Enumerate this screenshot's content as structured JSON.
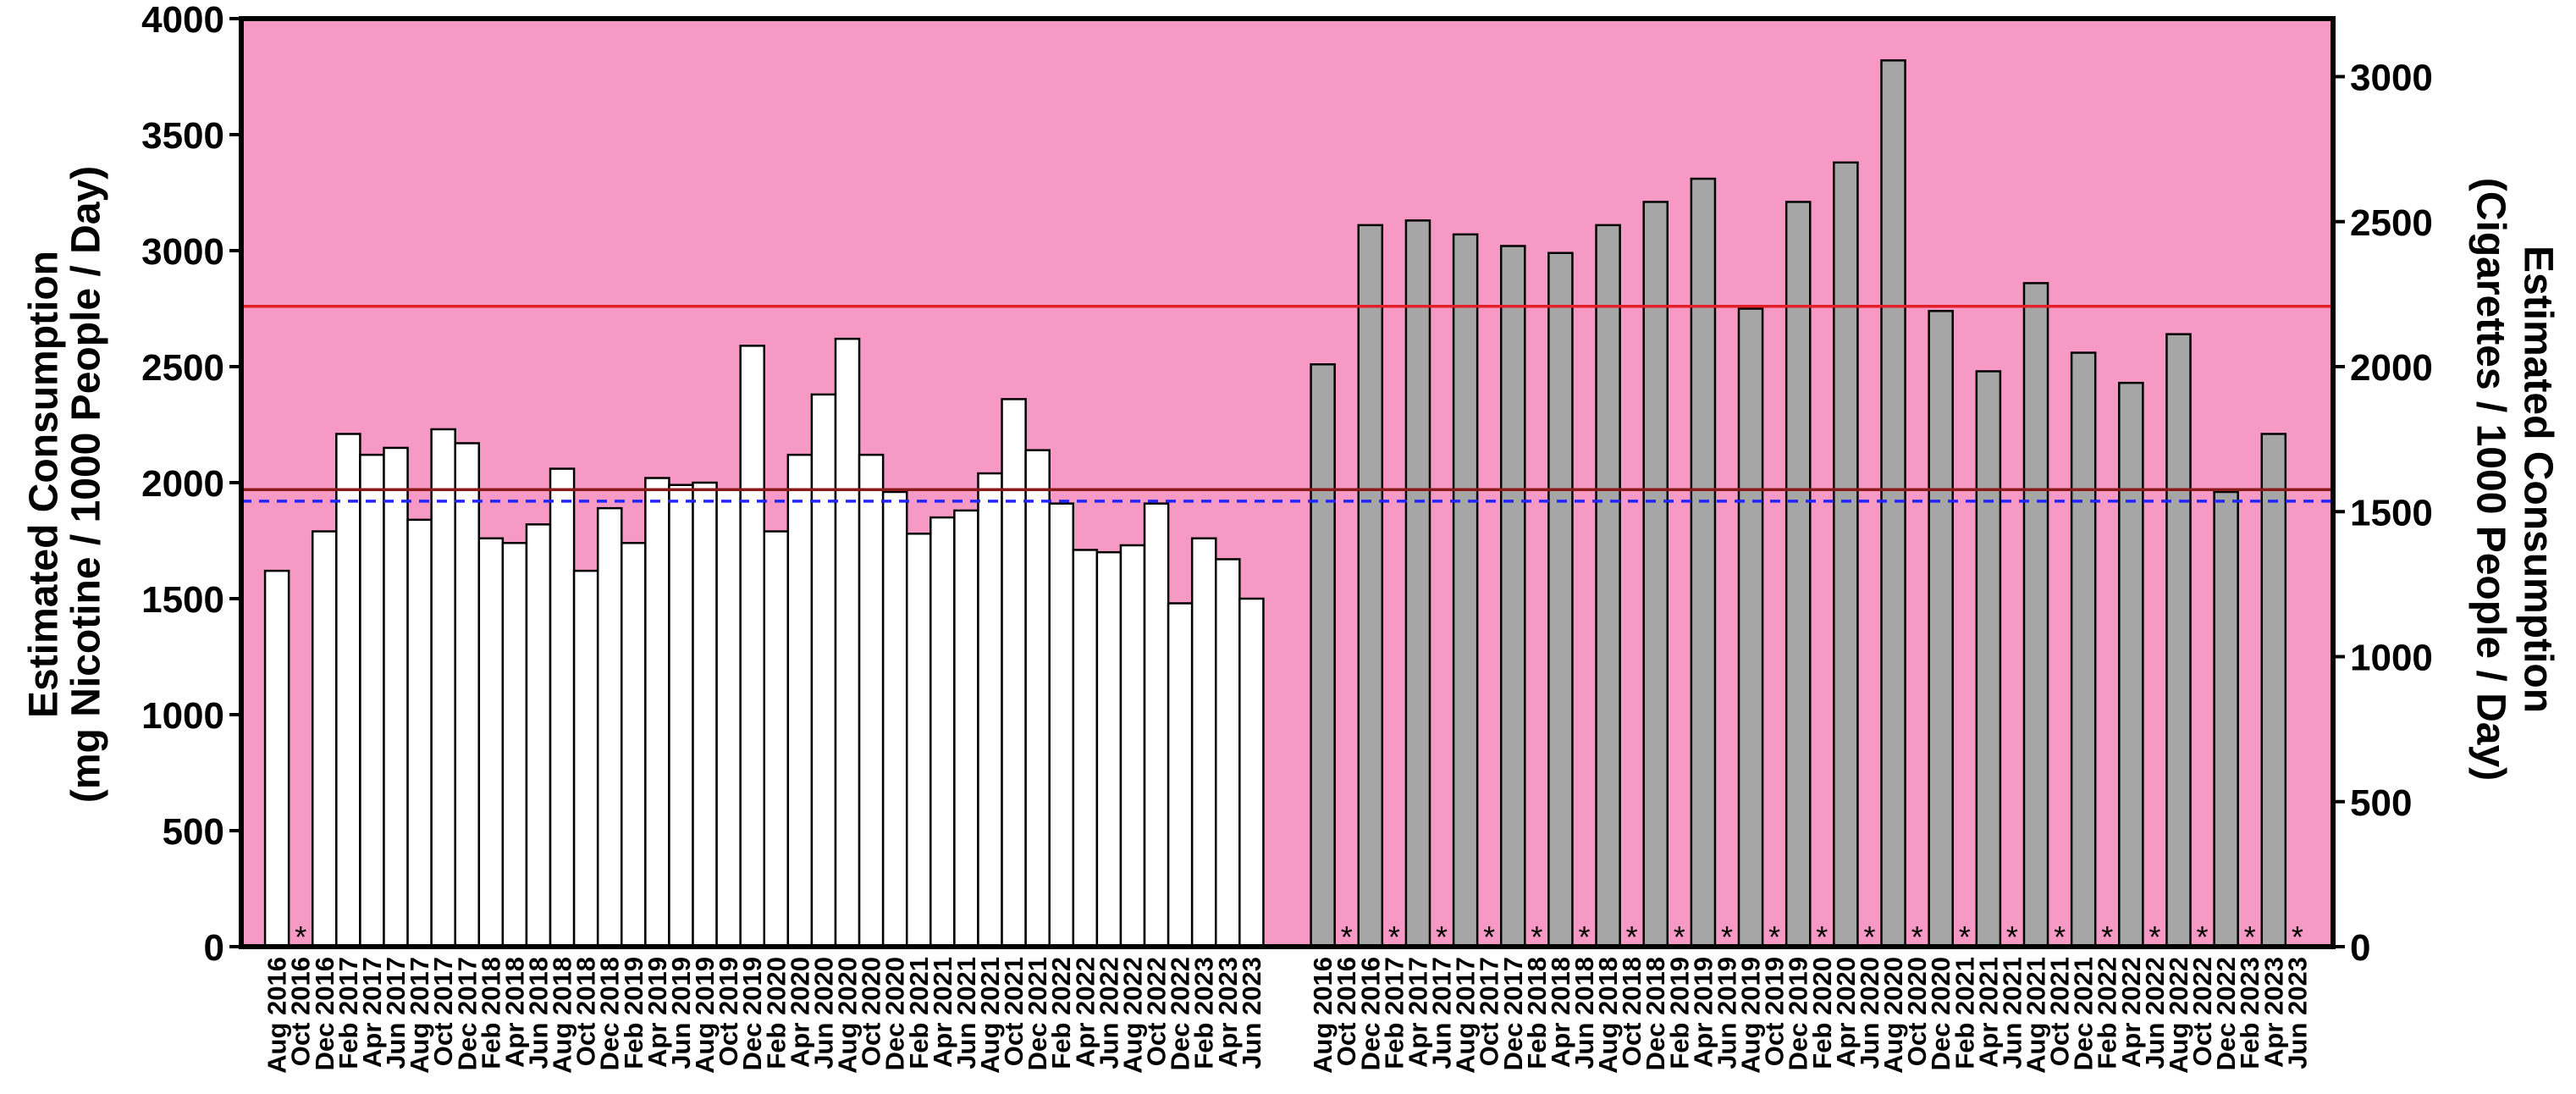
{
  "chart_data": {
    "type": "bar",
    "ylabel": [
      "Estimated Consumption",
      "(mg Nicotine / 1000 People / Day)"
    ],
    "ylabel_right": [
      "Estimated Consumption",
      "(Cigarettes / 1000 People / Day)"
    ],
    "ylim": [
      0,
      4000
    ],
    "yticks": [
      0,
      500,
      1000,
      1500,
      2000,
      2500,
      3000,
      3500,
      4000
    ],
    "ylim_right": [
      0,
      3200
    ],
    "yticks_right": [
      0,
      500,
      1000,
      1500,
      2000,
      2500,
      3000
    ],
    "categories": [
      "Aug 2016",
      "Oct 2016",
      "Dec 2016",
      "Feb 2017",
      "Apr 2017",
      "Jun 2017",
      "Aug 2017",
      "Oct 2017",
      "Dec 2017",
      "Feb 2018",
      "Apr 2018",
      "Jun 2018",
      "Aug 2018",
      "Oct 2018",
      "Dec 2018",
      "Feb 2019",
      "Apr 2019",
      "Jun 2019",
      "Aug 2019",
      "Oct 2019",
      "Dec 2019",
      "Feb 2020",
      "Apr 2020",
      "Jun 2020",
      "Aug 2020",
      "Oct 2020",
      "Dec 2020",
      "Feb 2021",
      "Apr 2021",
      "Jun 2021",
      "Aug 2021",
      "Oct 2021",
      "Dec 2021",
      "Feb 2022",
      "Apr 2022",
      "Jun 2022",
      "Aug 2022",
      "Oct 2022",
      "Dec 2022",
      "Feb 2023",
      "Apr 2023",
      "Jun 2023"
    ],
    "series": [
      {
        "color": "#ffffff",
        "values": [
          1620,
          null,
          1790,
          2210,
          2120,
          2150,
          1840,
          2230,
          2170,
          1760,
          1740,
          1820,
          2060,
          1620,
          1890,
          1740,
          2020,
          1990,
          2000,
          1970,
          2590,
          1790,
          2120,
          2380,
          2620,
          2120,
          1960,
          1780,
          1850,
          1880,
          2040,
          2360,
          2140,
          1910,
          1710,
          1700,
          1730,
          1910,
          1480,
          1760,
          1670,
          1500
        ]
      },
      {
        "color": "#a6a6a6",
        "values": [
          2510,
          null,
          3110,
          null,
          3130,
          null,
          3070,
          null,
          3020,
          null,
          2990,
          null,
          3110,
          null,
          3210,
          null,
          3310,
          null,
          2750,
          null,
          3210,
          null,
          3380,
          null,
          3820,
          null,
          2740,
          null,
          2480,
          null,
          2860,
          null,
          2560,
          null,
          2430,
          null,
          2640,
          null,
          1960,
          null,
          2210,
          null
        ]
      }
    ],
    "missing_marker": "*",
    "reference_lines": [
      {
        "y": 2760,
        "color": "#e3202a",
        "dashed": false
      },
      {
        "y": 1970,
        "color": "#8a1a1a",
        "dashed": false
      },
      {
        "y": 1920,
        "color": "#2424ff",
        "dashed": true
      }
    ],
    "plot_background": "#f799c5",
    "grid": false
  }
}
